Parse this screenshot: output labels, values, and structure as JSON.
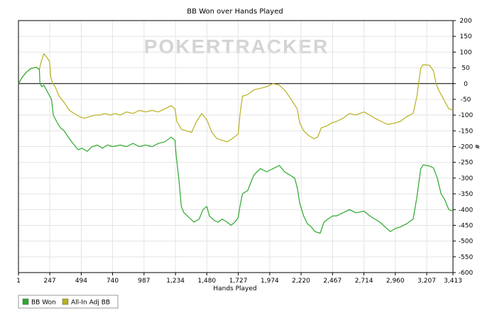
{
  "chart_data": {
    "type": "line",
    "title": "BB Won over Hands Played",
    "xlabel": "Hands Played",
    "ylabel": "#",
    "watermark": "POKERTRACKER",
    "xlim": [
      1,
      3413
    ],
    "ylim": [
      -600,
      200
    ],
    "x_ticks": [
      1,
      247,
      494,
      740,
      987,
      1234,
      1480,
      1727,
      1974,
      2220,
      2467,
      2714,
      2960,
      3207,
      3413
    ],
    "x_tick_labels": [
      "1",
      "247",
      "494",
      "740",
      "987",
      "1,234",
      "1,480",
      "1,727",
      "1,974",
      "2,220",
      "2,467",
      "2,714",
      "2,960",
      "3,207",
      "3,413"
    ],
    "y_ticks": [
      200,
      150,
      100,
      50,
      0,
      -50,
      -100,
      -150,
      -200,
      -250,
      -300,
      -350,
      -400,
      -450,
      -500,
      -550,
      -600
    ],
    "grid": true,
    "legend_position": "bottom-left",
    "series": [
      {
        "name": "BB Won",
        "color": "#2ca82c",
        "points": [
          [
            1,
            0
          ],
          [
            30,
            20
          ],
          [
            60,
            35
          ],
          [
            100,
            48
          ],
          [
            140,
            52
          ],
          [
            165,
            45
          ],
          [
            170,
            0
          ],
          [
            185,
            -10
          ],
          [
            200,
            -5
          ],
          [
            220,
            -20
          ],
          [
            260,
            -50
          ],
          [
            275,
            -100
          ],
          [
            300,
            -120
          ],
          [
            330,
            -140
          ],
          [
            360,
            -150
          ],
          [
            400,
            -175
          ],
          [
            430,
            -190
          ],
          [
            470,
            -210
          ],
          [
            500,
            -205
          ],
          [
            540,
            -215
          ],
          [
            580,
            -200
          ],
          [
            620,
            -195
          ],
          [
            660,
            -205
          ],
          [
            700,
            -195
          ],
          [
            740,
            -200
          ],
          [
            800,
            -195
          ],
          [
            850,
            -200
          ],
          [
            900,
            -190
          ],
          [
            950,
            -200
          ],
          [
            1000,
            -195
          ],
          [
            1050,
            -200
          ],
          [
            1100,
            -190
          ],
          [
            1150,
            -185
          ],
          [
            1200,
            -170
          ],
          [
            1230,
            -180
          ],
          [
            1240,
            -230
          ],
          [
            1260,
            -300
          ],
          [
            1280,
            -390
          ],
          [
            1300,
            -410
          ],
          [
            1340,
            -425
          ],
          [
            1380,
            -440
          ],
          [
            1420,
            -430
          ],
          [
            1450,
            -400
          ],
          [
            1480,
            -390
          ],
          [
            1500,
            -420
          ],
          [
            1540,
            -435
          ],
          [
            1570,
            -440
          ],
          [
            1600,
            -430
          ],
          [
            1640,
            -440
          ],
          [
            1670,
            -450
          ],
          [
            1700,
            -440
          ],
          [
            1727,
            -425
          ],
          [
            1740,
            -390
          ],
          [
            1760,
            -350
          ],
          [
            1780,
            -345
          ],
          [
            1800,
            -340
          ],
          [
            1850,
            -290
          ],
          [
            1900,
            -270
          ],
          [
            1950,
            -280
          ],
          [
            2000,
            -270
          ],
          [
            2050,
            -260
          ],
          [
            2090,
            -280
          ],
          [
            2130,
            -290
          ],
          [
            2170,
            -300
          ],
          [
            2190,
            -330
          ],
          [
            2210,
            -380
          ],
          [
            2240,
            -420
          ],
          [
            2270,
            -445
          ],
          [
            2300,
            -455
          ],
          [
            2330,
            -470
          ],
          [
            2370,
            -475
          ],
          [
            2400,
            -440
          ],
          [
            2430,
            -430
          ],
          [
            2470,
            -420
          ],
          [
            2500,
            -420
          ],
          [
            2550,
            -410
          ],
          [
            2600,
            -400
          ],
          [
            2650,
            -410
          ],
          [
            2714,
            -405
          ],
          [
            2760,
            -420
          ],
          [
            2800,
            -430
          ],
          [
            2840,
            -440
          ],
          [
            2880,
            -455
          ],
          [
            2920,
            -470
          ],
          [
            2960,
            -460
          ],
          [
            3000,
            -455
          ],
          [
            3050,
            -445
          ],
          [
            3100,
            -430
          ],
          [
            3130,
            -360
          ],
          [
            3160,
            -270
          ],
          [
            3180,
            -258
          ],
          [
            3230,
            -262
          ],
          [
            3260,
            -268
          ],
          [
            3290,
            -300
          ],
          [
            3320,
            -350
          ],
          [
            3350,
            -370
          ],
          [
            3380,
            -400
          ],
          [
            3413,
            -405
          ]
        ]
      },
      {
        "name": "All-In Adj BB",
        "color": "#b8b020",
        "points": [
          [
            1,
            0
          ],
          [
            30,
            20
          ],
          [
            60,
            35
          ],
          [
            100,
            48
          ],
          [
            140,
            52
          ],
          [
            165,
            45
          ],
          [
            180,
            70
          ],
          [
            200,
            95
          ],
          [
            230,
            80
          ],
          [
            245,
            70
          ],
          [
            255,
            20
          ],
          [
            270,
            0
          ],
          [
            290,
            -10
          ],
          [
            320,
            -40
          ],
          [
            360,
            -60
          ],
          [
            400,
            -85
          ],
          [
            440,
            -95
          ],
          [
            480,
            -105
          ],
          [
            520,
            -110
          ],
          [
            560,
            -105
          ],
          [
            600,
            -100
          ],
          [
            640,
            -100
          ],
          [
            680,
            -95
          ],
          [
            720,
            -100
          ],
          [
            760,
            -95
          ],
          [
            800,
            -100
          ],
          [
            850,
            -90
          ],
          [
            900,
            -95
          ],
          [
            950,
            -85
          ],
          [
            1000,
            -90
          ],
          [
            1050,
            -85
          ],
          [
            1100,
            -90
          ],
          [
            1150,
            -80
          ],
          [
            1200,
            -70
          ],
          [
            1230,
            -80
          ],
          [
            1245,
            -120
          ],
          [
            1280,
            -145
          ],
          [
            1320,
            -150
          ],
          [
            1360,
            -155
          ],
          [
            1400,
            -120
          ],
          [
            1440,
            -95
          ],
          [
            1480,
            -115
          ],
          [
            1520,
            -155
          ],
          [
            1560,
            -175
          ],
          [
            1600,
            -180
          ],
          [
            1640,
            -185
          ],
          [
            1680,
            -175
          ],
          [
            1727,
            -160
          ],
          [
            1740,
            -100
          ],
          [
            1760,
            -40
          ],
          [
            1800,
            -35
          ],
          [
            1850,
            -20
          ],
          [
            1900,
            -15
          ],
          [
            1950,
            -10
          ],
          [
            2000,
            0
          ],
          [
            2050,
            -5
          ],
          [
            2100,
            -25
          ],
          [
            2150,
            -55
          ],
          [
            2190,
            -80
          ],
          [
            2210,
            -125
          ],
          [
            2240,
            -150
          ],
          [
            2280,
            -165
          ],
          [
            2320,
            -175
          ],
          [
            2350,
            -170
          ],
          [
            2380,
            -140
          ],
          [
            2420,
            -135
          ],
          [
            2460,
            -125
          ],
          [
            2500,
            -120
          ],
          [
            2550,
            -110
          ],
          [
            2600,
            -95
          ],
          [
            2650,
            -100
          ],
          [
            2714,
            -90
          ],
          [
            2760,
            -100
          ],
          [
            2800,
            -110
          ],
          [
            2850,
            -120
          ],
          [
            2900,
            -130
          ],
          [
            2960,
            -125
          ],
          [
            3000,
            -120
          ],
          [
            3050,
            -105
          ],
          [
            3100,
            -95
          ],
          [
            3130,
            -40
          ],
          [
            3160,
            50
          ],
          [
            3180,
            60
          ],
          [
            3230,
            58
          ],
          [
            3260,
            40
          ],
          [
            3280,
            0
          ],
          [
            3300,
            -20
          ],
          [
            3340,
            -50
          ],
          [
            3380,
            -80
          ],
          [
            3413,
            -85
          ]
        ]
      }
    ]
  }
}
